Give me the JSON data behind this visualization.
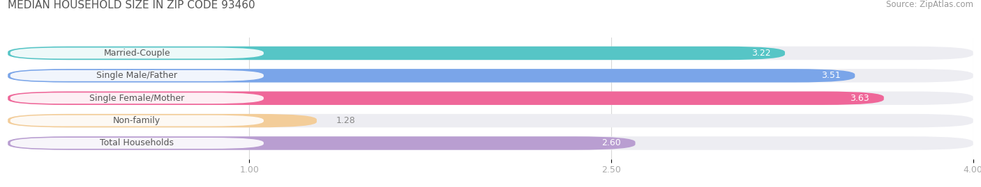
{
  "title": "MEDIAN HOUSEHOLD SIZE IN ZIP CODE 93460",
  "source": "Source: ZipAtlas.com",
  "categories": [
    "Married-Couple",
    "Single Male/Father",
    "Single Female/Mother",
    "Non-family",
    "Total Households"
  ],
  "values": [
    3.22,
    3.51,
    3.63,
    1.28,
    2.6
  ],
  "bar_colors": [
    "#3bbfbf",
    "#6699e8",
    "#f0508a",
    "#f5c88a",
    "#b090cc"
  ],
  "bar_bg_color": "#ededf2",
  "xlim": [
    0,
    4.0
  ],
  "xticks": [
    1.0,
    2.5,
    4.0
  ],
  "title_fontsize": 11,
  "source_fontsize": 8.5,
  "label_fontsize": 9,
  "value_fontsize": 9,
  "tick_fontsize": 9,
  "background_color": "#ffffff",
  "bar_height": 0.6,
  "bar_gap": 0.4,
  "label_text_color": "#555555",
  "value_inside_color": "#ffffff",
  "value_outside_color": "#888888",
  "title_color": "#555555",
  "source_color": "#999999",
  "tick_color": "#aaaaaa",
  "grid_color": "#d8d8d8"
}
